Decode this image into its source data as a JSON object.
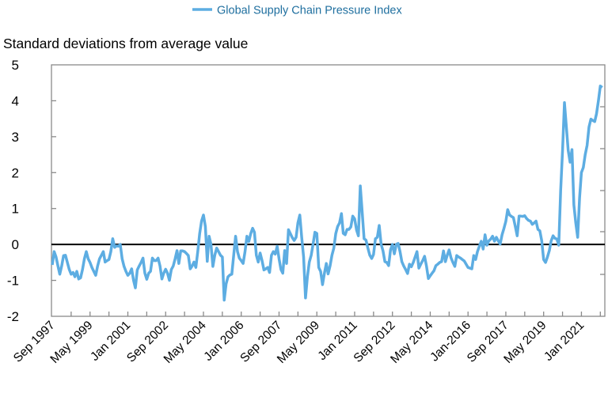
{
  "chart_data": {
    "type": "line",
    "title": "",
    "legend": {
      "position": "top-center"
    },
    "ylabel": "Standard deviations from average value",
    "xlabel": "",
    "ylim": [
      -2,
      5
    ],
    "yticks": [
      "5",
      "4",
      "3",
      "2",
      "1",
      "0",
      "-1",
      "-2"
    ],
    "ytick_values": [
      5,
      4,
      3,
      2,
      1,
      0,
      -1,
      -2
    ],
    "x_frequency": "monthly",
    "x_start": "Sep 1997",
    "x_end": "Dec 2021",
    "xtick_labels": [
      "Sep 1997",
      "May 1999",
      "Jan 2001",
      "Sep 2002",
      "May 2004",
      "Jan 2006",
      "Sep 2007",
      "May 2009",
      "Jan 2011",
      "Sep 2012",
      "May 2014",
      "Jan-2016",
      "Sep 2017",
      "May 2019",
      "Jan 2021"
    ],
    "reference_line": 0,
    "grid": false,
    "colors": {
      "series": "#5dade2",
      "legend_text": "#1f6f9f",
      "zero_line": "#000000",
      "frame": "#8a8a8a"
    },
    "series": [
      {
        "name": "Global Supply Chain Pressure Index",
        "values": [
          -0.57,
          -0.2,
          -0.35,
          -0.6,
          -0.83,
          -0.6,
          -0.31,
          -0.3,
          -0.5,
          -0.7,
          -0.83,
          -0.78,
          -0.9,
          -0.75,
          -0.96,
          -0.93,
          -0.7,
          -0.4,
          -0.2,
          -0.4,
          -0.5,
          -0.64,
          -0.75,
          -0.86,
          -0.6,
          -0.4,
          -0.3,
          -0.2,
          -0.49,
          -0.45,
          -0.42,
          -0.2,
          0.16,
          -0.08,
          -0.04,
          -0.05,
          0.0,
          -0.4,
          -0.61,
          -0.75,
          -0.86,
          -0.8,
          -0.68,
          -1.0,
          -1.21,
          -0.71,
          -0.6,
          -0.5,
          -0.38,
          -0.8,
          -0.97,
          -0.8,
          -0.75,
          -0.38,
          -0.45,
          -0.45,
          -0.38,
          -0.6,
          -0.96,
          -0.8,
          -0.69,
          -0.8,
          -1.0,
          -0.7,
          -0.6,
          -0.4,
          -0.17,
          -0.53,
          -0.18,
          -0.18,
          -0.2,
          -0.25,
          -0.31,
          -0.68,
          -0.6,
          -0.49,
          -0.64,
          -0.2,
          0.3,
          0.65,
          0.82,
          0.5,
          -0.47,
          0.23,
          0.0,
          -0.61,
          -0.3,
          -0.1,
          -0.2,
          -0.3,
          -0.35,
          -1.55,
          -1.1,
          -0.9,
          -0.85,
          -0.83,
          -0.3,
          0.23,
          -0.2,
          -0.38,
          -0.45,
          -0.53,
          -0.2,
          0.23,
          0.08,
          0.3,
          0.45,
          0.34,
          -0.3,
          -0.49,
          -0.24,
          -0.45,
          -0.71,
          -0.68,
          -0.64,
          -0.78,
          -0.3,
          -0.2,
          -0.27,
          -0.05,
          -0.4,
          -0.7,
          -0.8,
          -0.17,
          -0.53,
          0.41,
          0.3,
          0.19,
          0.11,
          0.2,
          0.6,
          0.82,
          0.2,
          -0.35,
          -1.49,
          -0.9,
          -0.49,
          -0.3,
          0.0,
          0.34,
          0.31,
          -0.64,
          -0.75,
          -1.12,
          -0.8,
          -0.53,
          -0.82,
          -0.6,
          -0.3,
          -0.1,
          0.3,
          0.5,
          0.6,
          0.86,
          0.31,
          0.27,
          0.42,
          0.42,
          0.49,
          0.79,
          0.71,
          0.4,
          0.24,
          1.63,
          0.9,
          0.16,
          0.12,
          -0.1,
          -0.3,
          -0.39,
          -0.28,
          0.16,
          0.2,
          0.53,
          0.01,
          -0.18,
          -0.48,
          -0.5,
          -0.59,
          -0.15,
          0.0,
          -0.26,
          0.0,
          0.03,
          -0.2,
          -0.48,
          -0.6,
          -0.7,
          -0.81,
          -0.55,
          -0.62,
          -0.5,
          -0.35,
          -0.2,
          -0.66,
          -0.55,
          -0.45,
          -0.33,
          -0.6,
          -0.95,
          -0.87,
          -0.8,
          -0.73,
          -0.59,
          -0.55,
          -0.5,
          -0.48,
          -0.18,
          -0.48,
          -0.3,
          -0.15,
          -0.37,
          -0.5,
          -0.61,
          -0.31,
          -0.35,
          -0.38,
          -0.42,
          -0.46,
          -0.55,
          -0.64,
          -0.66,
          -0.68,
          -0.31,
          -0.42,
          -0.2,
          -0.05,
          0.09,
          -0.13,
          0.27,
          -0.02,
          0.1,
          0.15,
          0.23,
          0.09,
          0.2,
          0.1,
          0.01,
          0.27,
          0.45,
          0.64,
          0.97,
          0.82,
          0.78,
          0.75,
          0.5,
          0.24,
          0.79,
          0.79,
          0.78,
          0.8,
          0.72,
          0.67,
          0.65,
          0.56,
          0.6,
          0.65,
          0.42,
          0.38,
          0.1,
          -0.42,
          -0.5,
          -0.35,
          -0.17,
          0.1,
          0.24,
          0.17,
          0.15,
          -0.02,
          1.5,
          2.62,
          3.95,
          3.3,
          2.62,
          2.29,
          2.64,
          1.1,
          0.6,
          0.2,
          1.3,
          2.0,
          2.14,
          2.5,
          2.76,
          3.27,
          3.49,
          3.45,
          3.42,
          3.64,
          4.0,
          4.41,
          4.37
        ]
      }
    ]
  }
}
